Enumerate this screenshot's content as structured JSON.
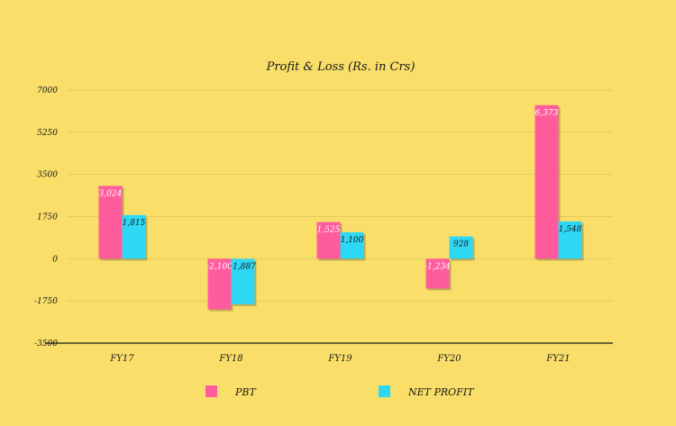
{
  "chart_data": {
    "type": "bar",
    "title": "Profit & Loss (Rs. in Crs)",
    "xlabel": "",
    "ylabel": "",
    "categories": [
      "FY17",
      "FY18",
      "FY19",
      "FY20",
      "FY21"
    ],
    "series": [
      {
        "name": "PBT",
        "values": [
          3024,
          -2100,
          1525,
          -1234,
          6373
        ],
        "labels": [
          "3,024",
          "-2,100",
          "1,525",
          "-1,234",
          "6,373"
        ],
        "color": "#FF5C9E"
      },
      {
        "name": "NET PROFIT",
        "values": [
          1815,
          -1887,
          1100,
          928,
          1548
        ],
        "labels": [
          "1,815",
          "-1,887",
          "1,100",
          "928",
          "1,548"
        ],
        "color": "#2ED8F4"
      }
    ],
    "ylim": [
      -3500,
      7000
    ],
    "yticks": [
      7000,
      5250,
      3500,
      1750,
      0,
      -1750,
      -3500
    ],
    "grid": true,
    "legend_position": "bottom"
  },
  "colors": {
    "background": "#F9DE6A",
    "gridline": "#E6CB5C",
    "axis": "#1a1a1a"
  }
}
